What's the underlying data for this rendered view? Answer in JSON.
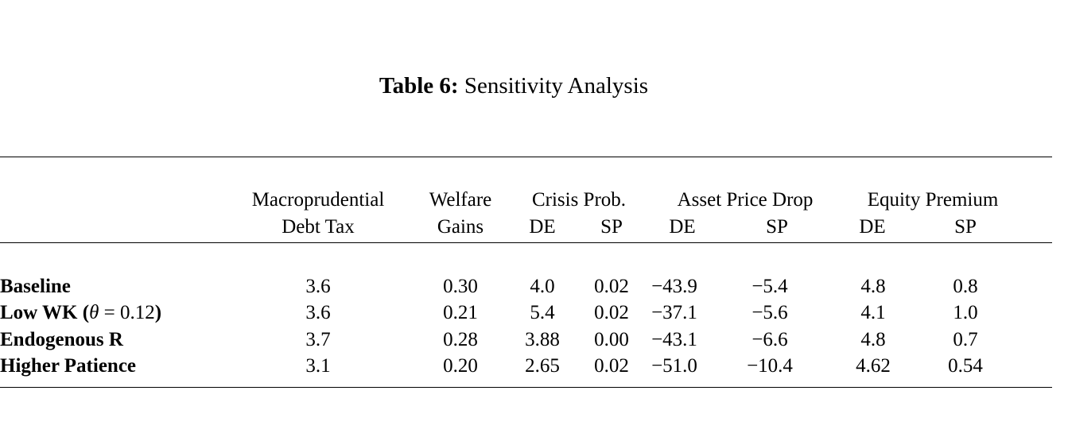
{
  "caption": {
    "label": "Table 6:",
    "title": "Sensitivity Analysis"
  },
  "header": {
    "line1": [
      "Macroprudential",
      "Welfare",
      "Crisis Prob.",
      "Asset Price Drop",
      "Equity Premium"
    ],
    "line2": [
      "Debt Tax",
      "Gains",
      "DE",
      "SP",
      "DE",
      "SP",
      "DE",
      "SP"
    ]
  },
  "rows": [
    {
      "label": "Baseline",
      "values": [
        "3.6",
        "0.30",
        "4.0",
        "0.02",
        "−43.9",
        "−5.4",
        "4.8",
        "0.8"
      ]
    },
    {
      "label_bold": "Low WK (",
      "label_theta": "θ",
      "label_eq": " = 0.12",
      "label_close": ")",
      "values": [
        "3.6",
        "0.21",
        "5.4",
        "0.02",
        "−37.1",
        "−5.6",
        "4.1",
        "1.0"
      ]
    },
    {
      "label": "Endogenous R",
      "values": [
        "3.7",
        "0.28",
        "3.88",
        "0.00",
        "−43.1",
        "−6.6",
        "4.8",
        "0.7"
      ]
    },
    {
      "label": "Higher Patience",
      "values": [
        "3.1",
        "0.20",
        "2.65",
        "0.02",
        "−51.0",
        "−10.4",
        "4.62",
        "0.54"
      ]
    }
  ]
}
